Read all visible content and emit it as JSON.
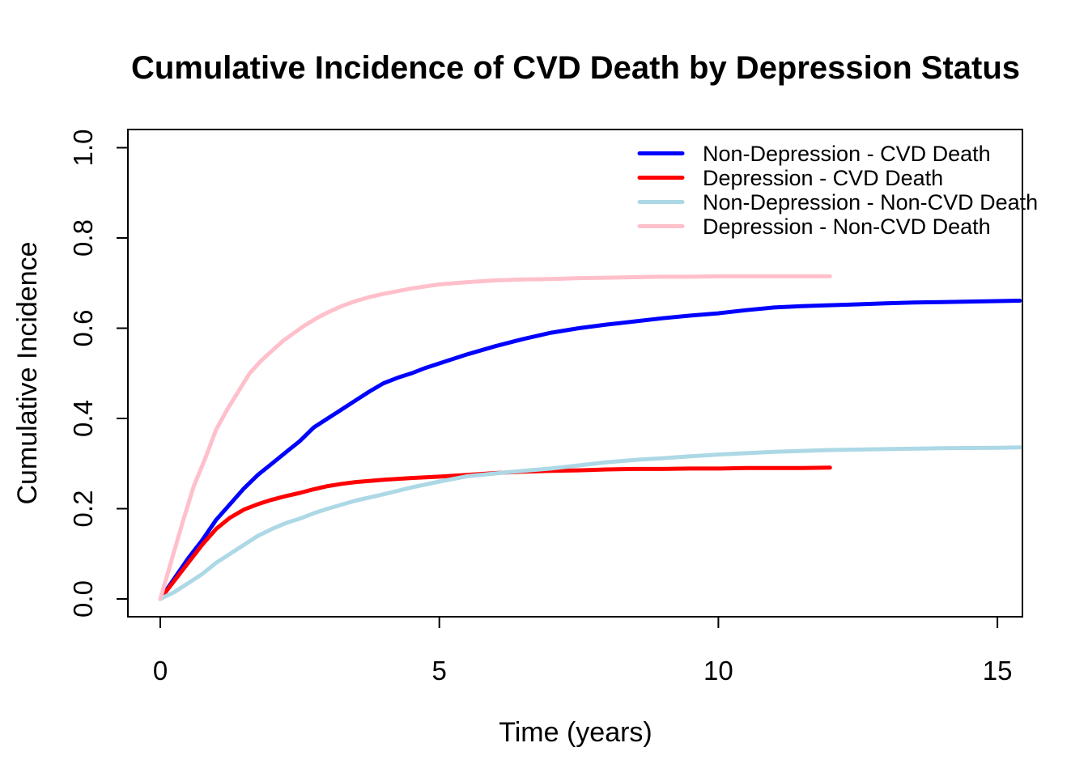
{
  "chart_data": {
    "type": "line",
    "title": "Cumulative Incidence of CVD Death by Depression Status",
    "xlabel": "Time (years)",
    "ylabel": "Cumulative Incidence",
    "xlim": [
      0,
      15.5
    ],
    "ylim": [
      0,
      1.0
    ],
    "x_ticks": [
      "0",
      "5",
      "10",
      "15"
    ],
    "y_ticks": [
      "0.0",
      "0.2",
      "0.4",
      "0.6",
      "0.8",
      "1.0"
    ],
    "grid": false,
    "legend_position": "top-right",
    "axis_color": "#000000",
    "background_color": "#ffffff",
    "series": [
      {
        "name": "Non-Depression - CVD Death",
        "color": "#0000FF",
        "points": [
          [
            0,
            0
          ],
          [
            0.25,
            0.045
          ],
          [
            0.5,
            0.09
          ],
          [
            0.75,
            0.13
          ],
          [
            1,
            0.175
          ],
          [
            1.25,
            0.21
          ],
          [
            1.5,
            0.245
          ],
          [
            1.75,
            0.275
          ],
          [
            2,
            0.3
          ],
          [
            2.25,
            0.325
          ],
          [
            2.5,
            0.35
          ],
          [
            2.75,
            0.38
          ],
          [
            3,
            0.4
          ],
          [
            3.25,
            0.42
          ],
          [
            3.5,
            0.44
          ],
          [
            3.75,
            0.46
          ],
          [
            4,
            0.478
          ],
          [
            4.25,
            0.49
          ],
          [
            4.5,
            0.5
          ],
          [
            4.75,
            0.512
          ],
          [
            5,
            0.522
          ],
          [
            5.5,
            0.542
          ],
          [
            6,
            0.56
          ],
          [
            6.5,
            0.576
          ],
          [
            7,
            0.59
          ],
          [
            7.5,
            0.6
          ],
          [
            8,
            0.608
          ],
          [
            8.5,
            0.615
          ],
          [
            9,
            0.622
          ],
          [
            9.5,
            0.628
          ],
          [
            10,
            0.633
          ],
          [
            10.5,
            0.64
          ],
          [
            11,
            0.646
          ],
          [
            11.5,
            0.649
          ],
          [
            12,
            0.651
          ],
          [
            12.5,
            0.653
          ],
          [
            13,
            0.655
          ],
          [
            13.5,
            0.657
          ],
          [
            14,
            0.658
          ],
          [
            14.5,
            0.659
          ],
          [
            15,
            0.66
          ],
          [
            15.4,
            0.661
          ]
        ]
      },
      {
        "name": "Depression - CVD Death",
        "color": "#FF0000",
        "points": [
          [
            0,
            0
          ],
          [
            0.25,
            0.04
          ],
          [
            0.5,
            0.08
          ],
          [
            0.75,
            0.12
          ],
          [
            1,
            0.155
          ],
          [
            1.25,
            0.18
          ],
          [
            1.5,
            0.198
          ],
          [
            1.75,
            0.21
          ],
          [
            2,
            0.22
          ],
          [
            2.25,
            0.228
          ],
          [
            2.5,
            0.235
          ],
          [
            2.75,
            0.243
          ],
          [
            3,
            0.25
          ],
          [
            3.25,
            0.255
          ],
          [
            3.5,
            0.259
          ],
          [
            4,
            0.264
          ],
          [
            4.5,
            0.268
          ],
          [
            5,
            0.271
          ],
          [
            5.5,
            0.275
          ],
          [
            6,
            0.279
          ],
          [
            6.5,
            0.282
          ],
          [
            7,
            0.284
          ],
          [
            7.5,
            0.285
          ],
          [
            8,
            0.287
          ],
          [
            8.5,
            0.288
          ],
          [
            9,
            0.288
          ],
          [
            9.5,
            0.289
          ],
          [
            10,
            0.289
          ],
          [
            10.5,
            0.29
          ],
          [
            11,
            0.29
          ],
          [
            11.5,
            0.29
          ],
          [
            12,
            0.291
          ]
        ]
      },
      {
        "name": "Non-Depression - Non-CVD Death",
        "color": "#ADD8E6",
        "points": [
          [
            0,
            0
          ],
          [
            0.25,
            0.015
          ],
          [
            0.5,
            0.035
          ],
          [
            0.75,
            0.055
          ],
          [
            1,
            0.08
          ],
          [
            1.25,
            0.1
          ],
          [
            1.5,
            0.12
          ],
          [
            1.75,
            0.14
          ],
          [
            2,
            0.155
          ],
          [
            2.25,
            0.168
          ],
          [
            2.5,
            0.178
          ],
          [
            2.75,
            0.19
          ],
          [
            3,
            0.2
          ],
          [
            3.5,
            0.218
          ],
          [
            4,
            0.232
          ],
          [
            4.5,
            0.247
          ],
          [
            5,
            0.26
          ],
          [
            5.5,
            0.272
          ],
          [
            6,
            0.278
          ],
          [
            6.5,
            0.284
          ],
          [
            7,
            0.289
          ],
          [
            7.5,
            0.296
          ],
          [
            8,
            0.303
          ],
          [
            8.5,
            0.308
          ],
          [
            9,
            0.312
          ],
          [
            9.5,
            0.316
          ],
          [
            10,
            0.32
          ],
          [
            10.5,
            0.323
          ],
          [
            11,
            0.326
          ],
          [
            11.5,
            0.328
          ],
          [
            12,
            0.33
          ],
          [
            13,
            0.332
          ],
          [
            14,
            0.334
          ],
          [
            15,
            0.335
          ],
          [
            15.4,
            0.336
          ]
        ]
      },
      {
        "name": "Depression - Non-CVD Death",
        "color": "#FFC0CB",
        "points": [
          [
            0,
            0
          ],
          [
            0.2,
            0.085
          ],
          [
            0.4,
            0.17
          ],
          [
            0.6,
            0.25
          ],
          [
            0.8,
            0.31
          ],
          [
            1,
            0.375
          ],
          [
            1.2,
            0.42
          ],
          [
            1.4,
            0.46
          ],
          [
            1.6,
            0.5
          ],
          [
            1.8,
            0.527
          ],
          [
            2,
            0.55
          ],
          [
            2.2,
            0.572
          ],
          [
            2.4,
            0.59
          ],
          [
            2.6,
            0.607
          ],
          [
            2.8,
            0.622
          ],
          [
            3,
            0.635
          ],
          [
            3.25,
            0.649
          ],
          [
            3.5,
            0.66
          ],
          [
            3.75,
            0.669
          ],
          [
            4,
            0.676
          ],
          [
            4.5,
            0.688
          ],
          [
            5,
            0.697
          ],
          [
            5.5,
            0.702
          ],
          [
            6,
            0.706
          ],
          [
            6.5,
            0.708
          ],
          [
            7,
            0.709
          ],
          [
            7.5,
            0.711
          ],
          [
            8,
            0.712
          ],
          [
            8.5,
            0.713
          ],
          [
            9,
            0.714
          ],
          [
            9.5,
            0.714
          ],
          [
            10,
            0.715
          ],
          [
            10.5,
            0.715
          ],
          [
            11,
            0.715
          ],
          [
            11.5,
            0.715
          ],
          [
            12,
            0.715
          ]
        ]
      }
    ]
  }
}
